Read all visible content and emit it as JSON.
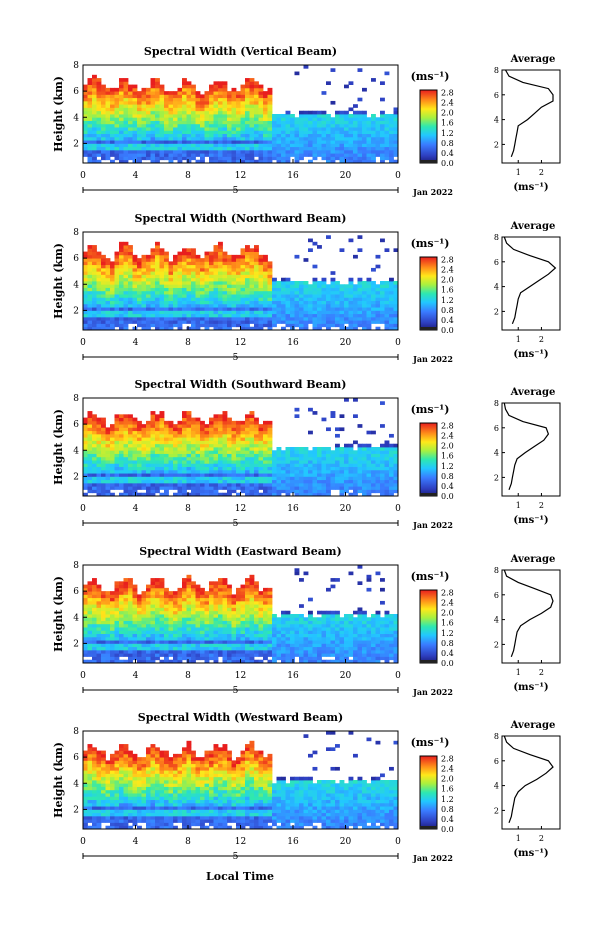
{
  "chart_data": {
    "type": "heatmap",
    "colorbar": {
      "unit": "(ms⁻¹)",
      "ticks": [
        "0.0",
        "0.4",
        "0.8",
        "1.2",
        "1.6",
        "2.0",
        "2.4",
        "2.8"
      ],
      "range": [
        0,
        2.9
      ]
    },
    "x_ticks": [
      "0",
      "4",
      "8",
      "12",
      "16",
      "20",
      "0"
    ],
    "x_range": [
      0,
      24
    ],
    "date_label": "Jan 2022",
    "day_label": "5",
    "xlabel": "Local Time",
    "ylabel": "Height (km)",
    "y_ticks": [
      "2",
      "4",
      "6",
      "8"
    ],
    "y_range": [
      0.5,
      8
    ],
    "profile_title": "Average",
    "profile_xlabel": "(ms⁻¹)",
    "profile_xticks": [
      "1",
      "2"
    ],
    "profile_xrange": [
      0.3,
      2.8
    ],
    "profile_yticks": [
      "2",
      "4",
      "6",
      "8"
    ],
    "panels": [
      {
        "title": "Spectral Width (Vertical Beam)",
        "profile": [
          [
            0.7,
            1.0
          ],
          [
            0.8,
            1.5
          ],
          [
            0.85,
            2.0
          ],
          [
            0.9,
            2.5
          ],
          [
            0.95,
            3.0
          ],
          [
            1.0,
            3.5
          ],
          [
            1.4,
            4.0
          ],
          [
            1.7,
            4.5
          ],
          [
            2.0,
            5.0
          ],
          [
            2.5,
            5.5
          ],
          [
            2.5,
            6.0
          ],
          [
            2.3,
            6.5
          ],
          [
            1.2,
            7.0
          ],
          [
            0.6,
            7.5
          ],
          [
            0.45,
            8.0
          ]
        ]
      },
      {
        "title": "Spectral Width (Northward Beam)",
        "profile": [
          [
            0.75,
            1.0
          ],
          [
            0.85,
            1.5
          ],
          [
            0.9,
            2.0
          ],
          [
            0.95,
            2.5
          ],
          [
            1.0,
            3.0
          ],
          [
            1.1,
            3.5
          ],
          [
            1.5,
            4.0
          ],
          [
            1.9,
            4.5
          ],
          [
            2.3,
            5.0
          ],
          [
            2.6,
            5.5
          ],
          [
            2.3,
            6.0
          ],
          [
            1.5,
            6.5
          ],
          [
            0.8,
            7.0
          ],
          [
            0.5,
            7.5
          ],
          [
            0.4,
            8.0
          ]
        ]
      },
      {
        "title": "Spectral Width (Southward Beam)",
        "profile": [
          [
            0.6,
            1.0
          ],
          [
            0.7,
            1.5
          ],
          [
            0.75,
            2.0
          ],
          [
            0.8,
            2.5
          ],
          [
            0.85,
            3.0
          ],
          [
            0.95,
            3.5
          ],
          [
            1.3,
            4.0
          ],
          [
            1.7,
            4.5
          ],
          [
            2.1,
            5.0
          ],
          [
            2.3,
            5.5
          ],
          [
            2.2,
            6.0
          ],
          [
            1.2,
            6.5
          ],
          [
            0.6,
            7.0
          ],
          [
            0.45,
            7.5
          ],
          [
            0.4,
            8.0
          ]
        ]
      },
      {
        "title": "Spectral Width (Eastward Beam)",
        "profile": [
          [
            0.7,
            1.0
          ],
          [
            0.8,
            1.5
          ],
          [
            0.85,
            2.0
          ],
          [
            0.9,
            2.5
          ],
          [
            0.95,
            3.0
          ],
          [
            1.1,
            3.5
          ],
          [
            1.5,
            4.0
          ],
          [
            2.0,
            4.5
          ],
          [
            2.4,
            5.0
          ],
          [
            2.5,
            5.5
          ],
          [
            2.4,
            6.0
          ],
          [
            1.7,
            6.5
          ],
          [
            1.0,
            7.0
          ],
          [
            0.5,
            7.5
          ],
          [
            0.4,
            8.0
          ]
        ]
      },
      {
        "title": "Spectral Width (Westward Beam)",
        "profile": [
          [
            0.6,
            1.0
          ],
          [
            0.7,
            1.5
          ],
          [
            0.75,
            2.0
          ],
          [
            0.8,
            2.5
          ],
          [
            0.85,
            3.0
          ],
          [
            1.0,
            3.5
          ],
          [
            1.3,
            4.0
          ],
          [
            1.8,
            4.5
          ],
          [
            2.2,
            5.0
          ],
          [
            2.5,
            5.5
          ],
          [
            2.3,
            6.0
          ],
          [
            1.5,
            6.5
          ],
          [
            0.8,
            7.0
          ],
          [
            0.5,
            7.5
          ],
          [
            0.4,
            8.0
          ]
        ]
      }
    ]
  }
}
